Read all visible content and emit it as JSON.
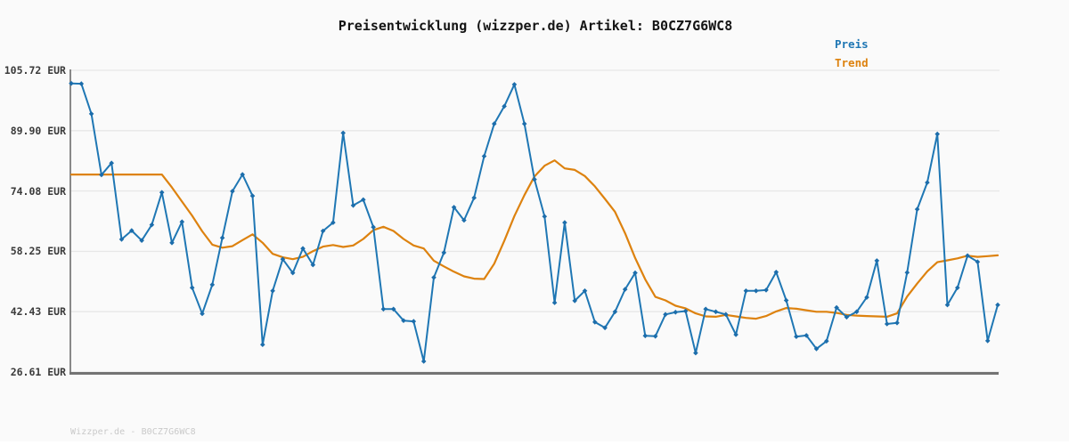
{
  "title": "Preisentwicklung (wizzper.de) Artikel: B0CZ7G6WC8",
  "article_id": "B0CZ7G6WC8",
  "legend": {
    "price_label": "Preis",
    "trend_label": "Trend"
  },
  "watermark": "Wizzper.de - B0CZ7G6WC8",
  "colors": {
    "price": "#1f77b4",
    "trend": "#dd820f",
    "grid": "#e7e7e7",
    "axis_left": "#888888",
    "axis_bottom": "#737373",
    "background": "#fafafa",
    "title_text": "#141414",
    "tick_text": "#3a3a3a",
    "watermark_text": "#c9c9c9"
  },
  "y_axis": {
    "unit": "EUR",
    "tick_labels": [
      "105.72 EUR",
      "89.90 EUR",
      "74.08 EUR",
      "58.25 EUR",
      "42.43 EUR",
      "26.61 EUR"
    ],
    "tick_values": [
      105.72,
      89.9,
      74.08,
      58.25,
      42.43,
      26.61
    ]
  },
  "x_axis": {
    "tick_labels_visible": false,
    "point_count": 93
  },
  "chart_data": {
    "type": "line",
    "title": "Preisentwicklung (wizzper.de) Artikel: B0CZ7G6WC8",
    "xlabel": "",
    "ylabel": "EUR",
    "ylim": [
      24.0,
      108.3
    ],
    "grid": "horizontal",
    "legend_position": "top-right",
    "series": [
      {
        "name": "Preis",
        "color": "#1f77b4",
        "marker": "diamond",
        "values": [
          102.3,
          102.2,
          94.3,
          78.3,
          81.4,
          61.4,
          63.7,
          61.1,
          65.2,
          73.7,
          60.5,
          66.0,
          48.7,
          41.9,
          49.5,
          61.8,
          74.0,
          78.4,
          72.8,
          33.8,
          47.9,
          56.2,
          52.6,
          59.0,
          54.7,
          63.6,
          65.8,
          89.3,
          70.3,
          71.8,
          64.6,
          43.1,
          43.1,
          40.1,
          39.9,
          29.4,
          51.4,
          57.9,
          69.8,
          66.4,
          72.3,
          83.2,
          91.7,
          96.3,
          102.0,
          91.7,
          77.1,
          67.4,
          44.8,
          65.8,
          45.3,
          47.9,
          39.7,
          38.2,
          42.4,
          48.3,
          52.6,
          36.1,
          36.0,
          41.7,
          42.3,
          42.6,
          31.6,
          43.1,
          42.4,
          41.7,
          36.4,
          47.9,
          47.9,
          48.1,
          52.8,
          45.4,
          35.9,
          36.2,
          32.7,
          34.7,
          43.5,
          41.0,
          42.4,
          46.2,
          55.8,
          39.2,
          39.5,
          52.7,
          69.3,
          76.3,
          89.0,
          44.2,
          48.7,
          57.1,
          55.5,
          34.8,
          44.2
        ]
      },
      {
        "name": "Trend",
        "color": "#dd820f",
        "marker": "none",
        "values": [
          78.4,
          78.4,
          78.4,
          78.4,
          78.4,
          78.4,
          78.4,
          78.4,
          78.4,
          78.4,
          75.0,
          71.3,
          67.6,
          63.5,
          60.0,
          59.2,
          59.6,
          61.2,
          62.7,
          60.5,
          57.6,
          56.7,
          56.2,
          56.8,
          58.3,
          59.5,
          59.9,
          59.4,
          59.8,
          61.5,
          63.8,
          64.7,
          63.6,
          61.5,
          59.8,
          59.0,
          55.8,
          54.3,
          52.9,
          51.7,
          51.1,
          51.0,
          55.0,
          61.0,
          67.5,
          73.0,
          77.9,
          80.7,
          82.1,
          80.0,
          79.6,
          78.0,
          75.3,
          72.0,
          68.6,
          63.0,
          56.5,
          50.9,
          46.3,
          45.4,
          44.0,
          43.3,
          42.0,
          41.2,
          41.1,
          41.6,
          41.2,
          40.8,
          40.6,
          41.3,
          42.5,
          43.4,
          43.2,
          42.8,
          42.4,
          42.4,
          42.1,
          41.6,
          41.4,
          41.3,
          41.2,
          41.1,
          42.0,
          46.4,
          49.8,
          53.0,
          55.4,
          55.9,
          56.4,
          57.1,
          56.8,
          57.0,
          57.2
        ]
      }
    ]
  }
}
